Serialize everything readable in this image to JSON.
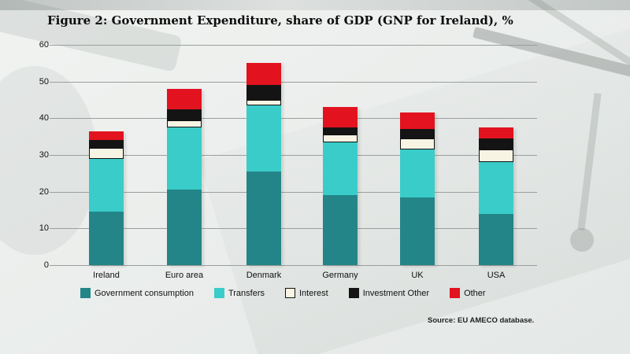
{
  "title": "Figure 2: Government Expenditure, share of GDP (GNP for Ireland), %",
  "source": "Source: EU AMECO database.",
  "colors": {
    "government_consumption": "#238588",
    "transfers": "#3ACCC9",
    "interest": "#F7F4E4",
    "investment_other": "#141414",
    "other": "#E2131F",
    "gridline": "#9aa09e",
    "text": "#111111"
  },
  "chart_data": {
    "type": "bar",
    "subtype": "stacked",
    "title": "Figure 2: Government Expenditure, share of GDP (GNP for Ireland), %",
    "categories": [
      "Ireland",
      "Euro area",
      "Denmark",
      "Germany",
      "UK",
      "USA"
    ],
    "series": [
      {
        "name": "Government consumption",
        "color": "#238588",
        "values": [
          14.5,
          20.5,
          25.5,
          19,
          18.5,
          14
        ]
      },
      {
        "name": "Transfers",
        "color": "#3ACCC9",
        "values": [
          14.5,
          17,
          18,
          14.5,
          13,
          14
        ]
      },
      {
        "name": "Interest",
        "color": "#F7F4E4",
        "values": [
          3,
          2,
          1.5,
          2,
          3,
          3.5
        ]
      },
      {
        "name": "Investment Other",
        "color": "#141414",
        "values": [
          2,
          3,
          4,
          2,
          2.5,
          3
        ]
      },
      {
        "name": "Other",
        "color": "#E2131F",
        "values": [
          2.5,
          5.5,
          6,
          5.5,
          4.5,
          3
        ]
      }
    ],
    "totals": [
      36.5,
      48,
      55,
      43,
      41.5,
      37.5
    ],
    "xlabel": "",
    "ylabel": "",
    "ylim": [
      0,
      60
    ],
    "yticks": [
      0,
      10,
      20,
      30,
      40,
      50,
      60
    ],
    "grid": "horizontal",
    "legend_position": "bottom"
  }
}
